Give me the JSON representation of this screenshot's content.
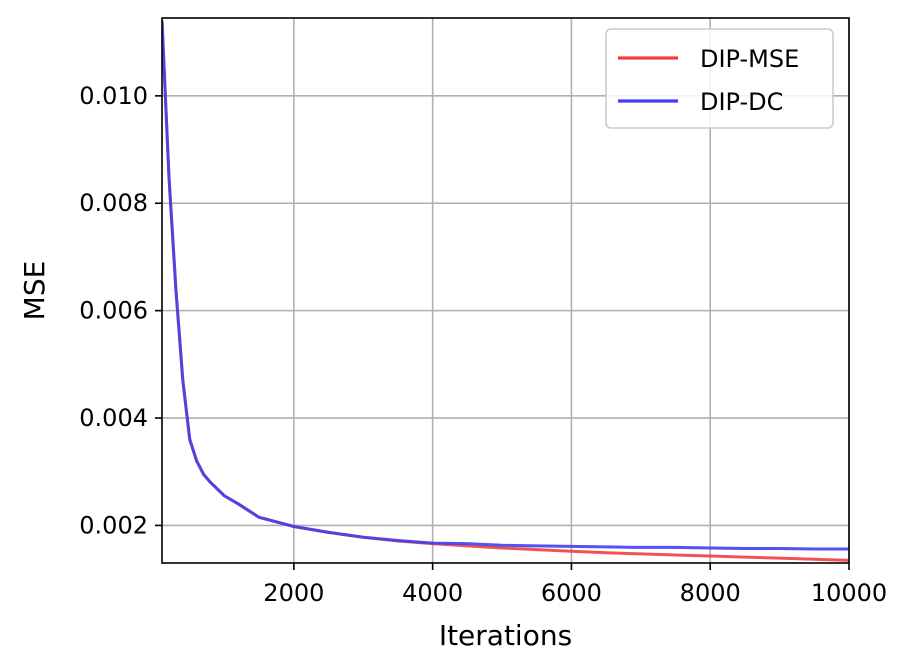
{
  "chart_data": {
    "type": "line",
    "title": "",
    "xlabel": "Iterations",
    "ylabel": "MSE",
    "xlim": [
      100,
      10000
    ],
    "ylim": [
      0.0013,
      0.01145
    ],
    "xticks": [
      2000,
      4000,
      6000,
      8000,
      10000
    ],
    "xtick_labels": [
      "2000",
      "4000",
      "6000",
      "8000",
      "10000"
    ],
    "yticks": [
      0.002,
      0.004,
      0.006,
      0.008,
      0.01
    ],
    "ytick_labels": [
      "0.002",
      "0.004",
      "0.006",
      "0.008",
      "0.010"
    ],
    "grid": true,
    "legend_position": "top-right",
    "series": [
      {
        "name": "DIP-MSE",
        "color": "#f04040",
        "x": [
          100,
          200,
          300,
          400,
          500,
          600,
          700,
          800,
          1000,
          1200,
          1500,
          2000,
          2500,
          3000,
          3500,
          4000,
          4500,
          5000,
          5500,
          6000,
          6500,
          7000,
          7500,
          8000,
          8500,
          9000,
          9500,
          10000
        ],
        "y": [
          0.0114,
          0.0085,
          0.0064,
          0.0047,
          0.0036,
          0.0032,
          0.00295,
          0.0028,
          0.00255,
          0.0024,
          0.00215,
          0.00198,
          0.00187,
          0.00178,
          0.00171,
          0.00166,
          0.00162,
          0.00158,
          0.00155,
          0.00152,
          0.00149,
          0.00147,
          0.00145,
          0.00143,
          0.00141,
          0.00139,
          0.00137,
          0.00135
        ]
      },
      {
        "name": "DIP-DC",
        "color": "#4040f0",
        "x": [
          100,
          200,
          300,
          400,
          500,
          600,
          700,
          800,
          1000,
          1200,
          1500,
          2000,
          2500,
          3000,
          3500,
          4000,
          4500,
          5000,
          5500,
          6000,
          6500,
          7000,
          7500,
          8000,
          8500,
          9000,
          9500,
          10000
        ],
        "y": [
          0.0114,
          0.0085,
          0.0064,
          0.0047,
          0.0036,
          0.0032,
          0.00295,
          0.0028,
          0.00255,
          0.0024,
          0.00215,
          0.00198,
          0.00187,
          0.00178,
          0.00172,
          0.00167,
          0.00166,
          0.00163,
          0.00162,
          0.00161,
          0.0016,
          0.00159,
          0.00159,
          0.00158,
          0.00157,
          0.00157,
          0.00156,
          0.00156
        ]
      }
    ]
  }
}
